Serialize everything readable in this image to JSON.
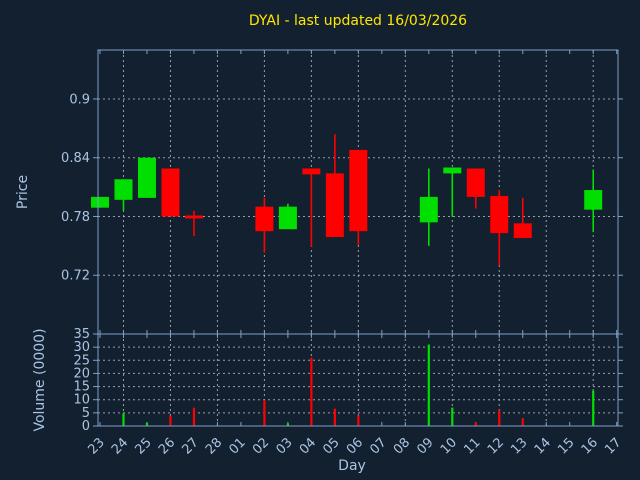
{
  "window": {
    "background": "#13202f"
  },
  "chart_data": {
    "type": "candlestick",
    "title": "DYAI - last updated 16/03/2026",
    "xlabel": "Day",
    "grid": true,
    "legend": false,
    "days": [
      "23",
      "24",
      "25",
      "26",
      "27",
      "28",
      "01",
      "02",
      "03",
      "04",
      "05",
      "06",
      "07",
      "08",
      "09",
      "10",
      "11",
      "12",
      "13",
      "14",
      "15",
      "16",
      "17"
    ],
    "price_axis": {
      "label": "Price",
      "ticks": [
        0.72,
        0.78,
        0.84,
        0.9
      ],
      "ylim": [
        0.66,
        0.95
      ]
    },
    "volume_axis": {
      "label": "Volume (0000)",
      "ticks": [
        0,
        5,
        10,
        15,
        20,
        25,
        30,
        35
      ],
      "ylim": [
        0,
        35
      ]
    },
    "colors": {
      "up": "#00df00",
      "down": "#fe0000",
      "title": "#ffe600",
      "axis_line": "#7fa0c8",
      "axis_text": "#a9c4e4",
      "grid": "#c3cad2",
      "background": "#13202f"
    },
    "candles": [
      {
        "day": "23",
        "open": 0.789,
        "high": 0.8,
        "low": 0.789,
        "close": 0.8,
        "volume": 0
      },
      {
        "day": "24",
        "open": 0.797,
        "high": 0.818,
        "low": 0.786,
        "close": 0.818,
        "volume": 4.8
      },
      {
        "day": "25",
        "open": 0.799,
        "high": 0.84,
        "low": 0.799,
        "close": 0.84,
        "volume": 1.2
      },
      {
        "day": "26",
        "open": 0.829,
        "high": 0.829,
        "low": 0.78,
        "close": 0.78,
        "volume": 4.0
      },
      {
        "day": "27",
        "open": 0.781,
        "high": 0.786,
        "low": 0.76,
        "close": 0.778,
        "volume": 7.0
      },
      {
        "day": "02",
        "open": 0.79,
        "high": 0.799,
        "low": 0.743,
        "close": 0.765,
        "volume": 10.0
      },
      {
        "day": "03",
        "open": 0.767,
        "high": 0.793,
        "low": 0.767,
        "close": 0.79,
        "volume": 1.0
      },
      {
        "day": "04",
        "open": 0.829,
        "high": 0.829,
        "low": 0.749,
        "close": 0.823,
        "volume": 26.0
      },
      {
        "day": "05",
        "open": 0.824,
        "high": 0.864,
        "low": 0.759,
        "close": 0.759,
        "volume": 6.6
      },
      {
        "day": "06",
        "open": 0.848,
        "high": 0.848,
        "low": 0.751,
        "close": 0.765,
        "volume": 4.0
      },
      {
        "day": "09",
        "open": 0.774,
        "high": 0.829,
        "low": 0.75,
        "close": 0.8,
        "volume": 31.0
      },
      {
        "day": "10",
        "open": 0.824,
        "high": 0.83,
        "low": 0.78,
        "close": 0.83,
        "volume": 7.0
      },
      {
        "day": "11",
        "open": 0.829,
        "high": 0.829,
        "low": 0.788,
        "close": 0.8,
        "volume": 1.5
      },
      {
        "day": "12",
        "open": 0.801,
        "high": 0.807,
        "low": 0.73,
        "close": 0.763,
        "volume": 6.0
      },
      {
        "day": "13",
        "open": 0.773,
        "high": 0.799,
        "low": 0.758,
        "close": 0.758,
        "volume": 3.0
      },
      {
        "day": "16",
        "open": 0.787,
        "high": 0.828,
        "low": 0.764,
        "close": 0.807,
        "volume": 13.5
      }
    ]
  }
}
